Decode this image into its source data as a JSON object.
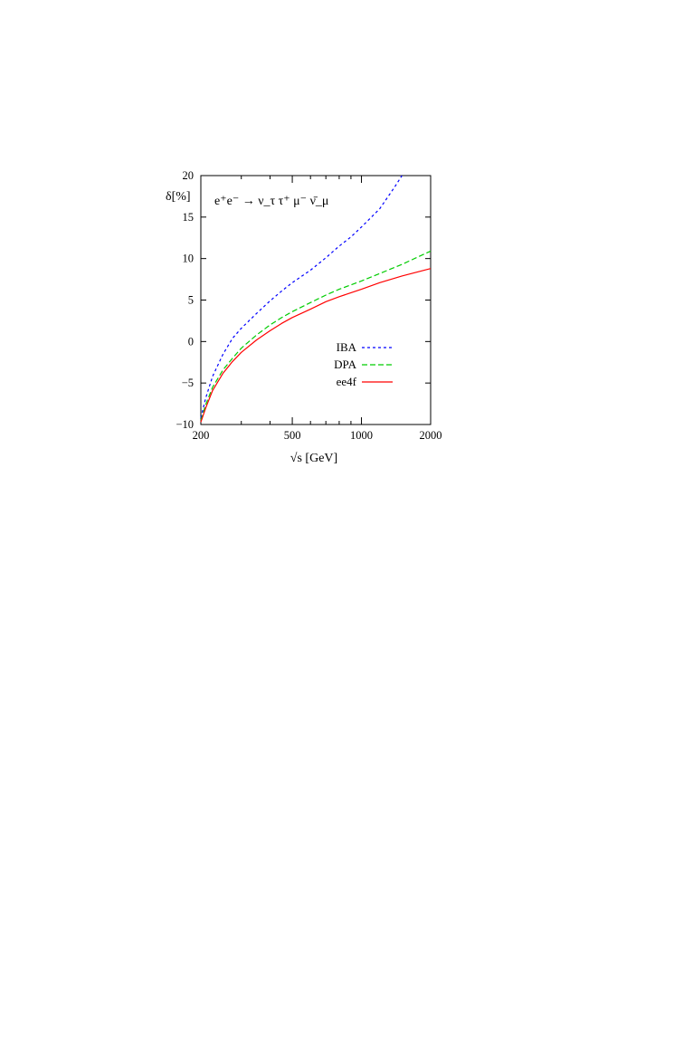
{
  "chart_data": {
    "type": "line",
    "title": "",
    "process_label": "e⁺e⁻ → ν_τ τ⁺ μ⁻ ν̄_μ",
    "xlabel": "√s [GeV]",
    "ylabel": "δ[%]",
    "xscale": "log",
    "xlim": [
      200,
      2000
    ],
    "ylim": [
      -10,
      20
    ],
    "xticks": [
      200,
      500,
      1000,
      2000
    ],
    "xtick_labels": [
      "200",
      "500",
      "1000",
      "2000"
    ],
    "yticks": [
      -10,
      -5,
      0,
      5,
      10,
      15,
      20
    ],
    "ytick_labels": [
      "−10",
      "−5",
      "0",
      "5",
      "10",
      "15",
      "20"
    ],
    "grid": false,
    "legend_position": "lower-right",
    "series": [
      {
        "name": "IBA",
        "color": "#0000ff",
        "style": "dotted",
        "x": [
          200,
          210,
          225,
          250,
          275,
          300,
          350,
          400,
          450,
          500,
          600,
          700,
          800,
          900,
          1000,
          1200,
          1400,
          1500
        ],
        "y": [
          -9.2,
          -6.8,
          -4.2,
          -1.5,
          0.4,
          1.6,
          3.4,
          4.9,
          6.1,
          7.1,
          8.6,
          10.1,
          11.5,
          12.6,
          13.8,
          16.0,
          18.7,
          20.0
        ]
      },
      {
        "name": "DPA",
        "color": "#00cc00",
        "style": "dashed",
        "x": [
          200,
          210,
          225,
          250,
          275,
          300,
          350,
          400,
          450,
          500,
          600,
          700,
          800,
          1000,
          1200,
          1500,
          2000
        ],
        "y": [
          -9.5,
          -7.6,
          -5.5,
          -3.4,
          -2.0,
          -0.8,
          0.8,
          2.0,
          2.9,
          3.6,
          4.7,
          5.6,
          6.3,
          7.3,
          8.2,
          9.3,
          10.9
        ]
      },
      {
        "name": "ee4f",
        "color": "#ff0000",
        "style": "solid",
        "x": [
          200,
          210,
          225,
          250,
          275,
          300,
          350,
          400,
          450,
          500,
          600,
          700,
          800,
          1000,
          1200,
          1500,
          2000
        ],
        "y": [
          -9.7,
          -8.0,
          -5.9,
          -3.8,
          -2.4,
          -1.3,
          0.2,
          1.3,
          2.2,
          2.9,
          3.9,
          4.8,
          5.4,
          6.3,
          7.1,
          7.9,
          8.8
        ]
      }
    ]
  }
}
